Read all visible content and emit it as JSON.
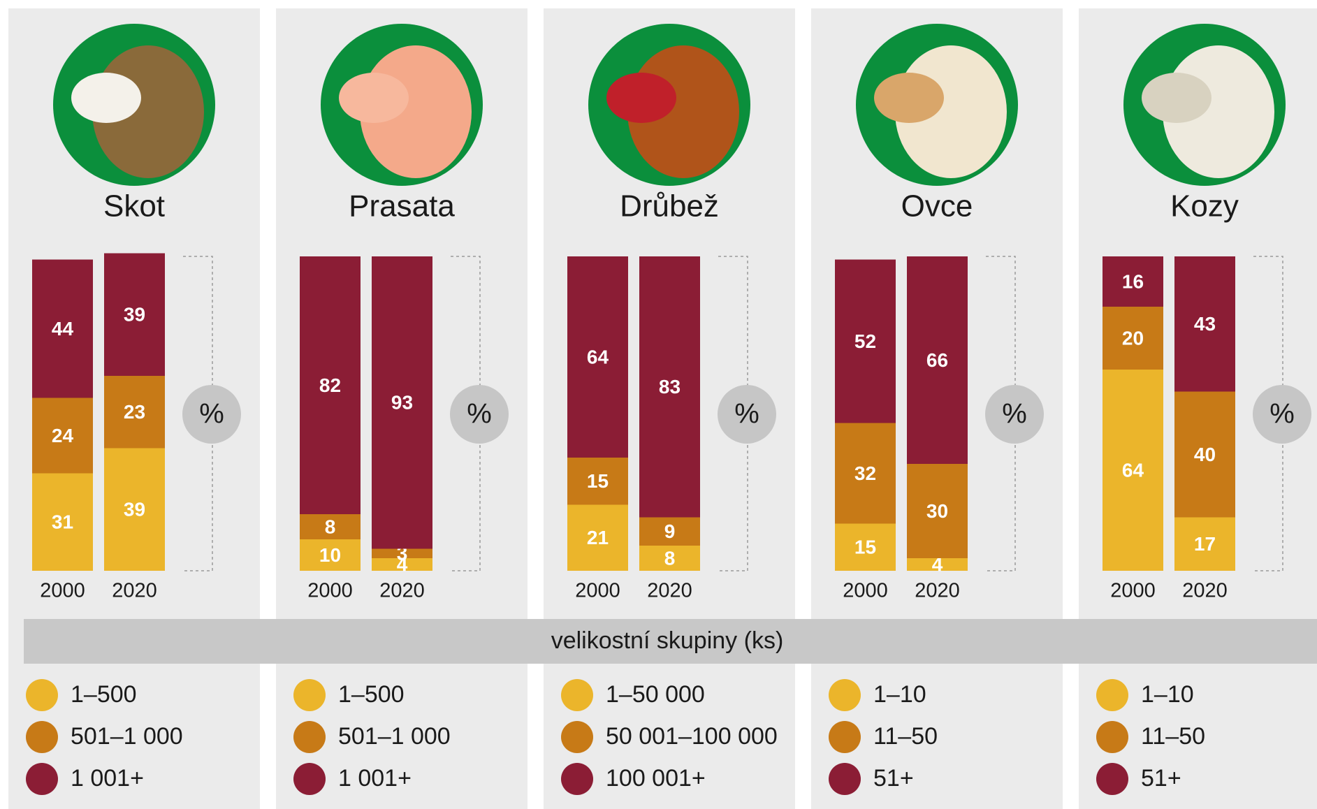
{
  "chart_data": [
    {
      "type": "bar",
      "stacked": true,
      "title": "Skot",
      "unit": "%",
      "categories": [
        "2000",
        "2020"
      ],
      "ylim": [
        0,
        100
      ],
      "series": [
        {
          "name": "1–500",
          "color": "#ebb52b",
          "values": [
            31,
            39
          ]
        },
        {
          "name": "501–1 000",
          "color": "#c77a17",
          "values": [
            24,
            23
          ]
        },
        {
          "name": "1 001+",
          "color": "#8b1d35",
          "values": [
            44,
            39
          ]
        }
      ]
    },
    {
      "type": "bar",
      "stacked": true,
      "title": "Prasata",
      "unit": "%",
      "categories": [
        "2000",
        "2020"
      ],
      "ylim": [
        0,
        100
      ],
      "series": [
        {
          "name": "1–500",
          "color": "#ebb52b",
          "values": [
            10,
            4
          ]
        },
        {
          "name": "501–1 000",
          "color": "#c77a17",
          "values": [
            8,
            3
          ]
        },
        {
          "name": "1 001+",
          "color": "#8b1d35",
          "values": [
            82,
            93
          ]
        }
      ]
    },
    {
      "type": "bar",
      "stacked": true,
      "title": "Drůbež",
      "unit": "%",
      "categories": [
        "2000",
        "2020"
      ],
      "ylim": [
        0,
        100
      ],
      "series": [
        {
          "name": "1–50 000",
          "color": "#ebb52b",
          "values": [
            21,
            8
          ]
        },
        {
          "name": "50 001–100 000",
          "color": "#c77a17",
          "values": [
            15,
            9
          ]
        },
        {
          "name": "100 001+",
          "color": "#8b1d35",
          "values": [
            64,
            83
          ]
        }
      ]
    },
    {
      "type": "bar",
      "stacked": true,
      "title": "Ovce",
      "unit": "%",
      "categories": [
        "2000",
        "2020"
      ],
      "ylim": [
        0,
        100
      ],
      "series": [
        {
          "name": "1–10",
          "color": "#ebb52b",
          "values": [
            15,
            4
          ]
        },
        {
          "name": "11–50",
          "color": "#c77a17",
          "values": [
            32,
            30
          ]
        },
        {
          "name": "51+",
          "color": "#8b1d35",
          "values": [
            52,
            66
          ]
        }
      ]
    },
    {
      "type": "bar",
      "stacked": true,
      "title": "Kozy",
      "unit": "%",
      "categories": [
        "2000",
        "2020"
      ],
      "ylim": [
        0,
        100
      ],
      "series": [
        {
          "name": "1–10",
          "color": "#ebb52b",
          "values": [
            64,
            17
          ]
        },
        {
          "name": "11–50",
          "color": "#c77a17",
          "values": [
            20,
            40
          ]
        },
        {
          "name": "51+",
          "color": "#8b1d35",
          "values": [
            16,
            43
          ]
        }
      ]
    }
  ],
  "group_label": "velikostní skupiny (ks)"
}
